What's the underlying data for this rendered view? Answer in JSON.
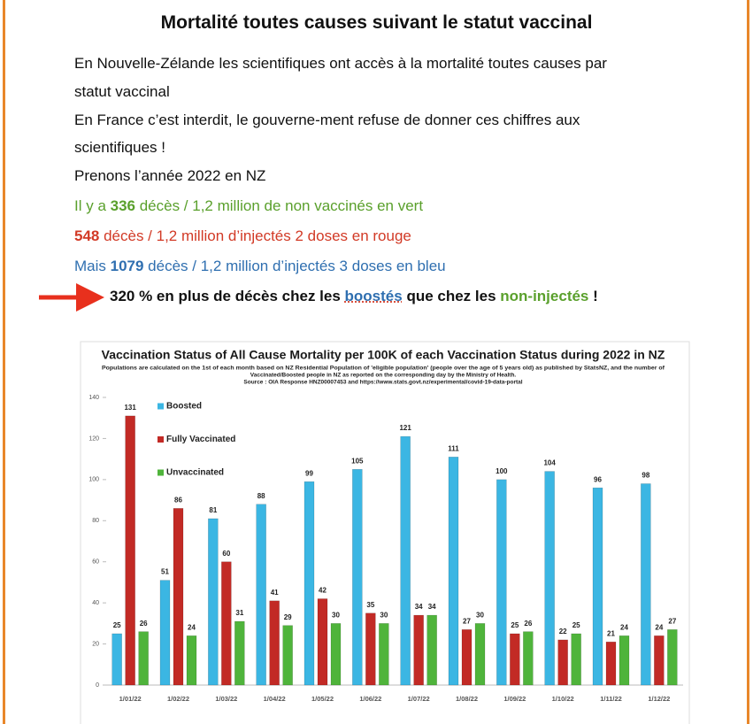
{
  "document": {
    "title": "Mortalité toutes causes suivant le statut vaccinal",
    "lines": [
      {
        "segments": [
          {
            "text": "En Nouvelle-Zélande les scientifiques ont accès à la mortalité toutes causes par"
          }
        ]
      },
      {
        "segments": [
          {
            "text": "statut vaccinal"
          }
        ]
      },
      {
        "segments": [
          {
            "text": "En France c’est interdit, le gouverne-ment refuse de donner ces chiffres aux"
          }
        ]
      },
      {
        "segments": [
          {
            "text": "scientifiques !"
          }
        ]
      },
      {
        "segments": [
          {
            "text": "Prenons l’année 2022 en NZ"
          }
        ]
      },
      {
        "color": "#5aa02c",
        "segments": [
          {
            "text": "Il y a "
          },
          {
            "text": "336",
            "bold": true
          },
          {
            "text": " décès / 1,2 million de non vaccinés en vert"
          }
        ]
      },
      {
        "color": "#d23a26",
        "segments": [
          {
            "text": "548",
            "bold": true
          },
          {
            "text": " décès / 1,2 million d’injectés 2 doses en rouge"
          }
        ]
      },
      {
        "color": "#2f6fb0",
        "segments": [
          {
            "text": "Mais "
          },
          {
            "text": "1079",
            "bold": true
          },
          {
            "text": " décès / 1,2 million d’injectés 3 doses en bleu"
          }
        ]
      },
      {
        "bold": true,
        "segments": [
          {
            "text": "320 % en plus de décès chez les "
          },
          {
            "text": "boostés",
            "color": "#2f6fb0",
            "underline": true
          },
          {
            "text": " que chez les "
          },
          {
            "text": "non-injectés",
            "color": "#5aa02c"
          },
          {
            "text": " !"
          }
        ]
      }
    ]
  },
  "chart_data": {
    "type": "bar",
    "title": "Vaccination Status of All Cause Mortality per 100K of each Vaccination Status during 2022 in NZ",
    "subtitle": [
      "Populations are calculated on the 1st of each month based on NZ Residential Population of 'eligible population' (people over the age of 5 years old) as published by StatsNZ, and the number of",
      "Vaccinated/Boosted people in NZ as reported on the corresponding day by the Ministry of Health.",
      "Source : OIA Response HNZ00007453 and https://www.stats.govt.nz/experimental/covid-19-data-portal"
    ],
    "categories": [
      "1/01/22",
      "1/02/22",
      "1/03/22",
      "1/04/22",
      "1/05/22",
      "1/06/22",
      "1/07/22",
      "1/08/22",
      "1/09/22",
      "1/10/22",
      "1/11/22",
      "1/12/22"
    ],
    "series": [
      {
        "name": "Boosted",
        "color": "#3bb6e3",
        "values": [
          25,
          51,
          81,
          88,
          99,
          105,
          121,
          111,
          100,
          104,
          96,
          98
        ]
      },
      {
        "name": "Fully Vaccinated",
        "color": "#c22a25",
        "values": [
          131,
          86,
          60,
          41,
          42,
          35,
          34,
          27,
          25,
          22,
          21,
          24
        ]
      },
      {
        "name": "Unvaccinated",
        "color": "#4fb43b",
        "values": [
          26,
          24,
          31,
          29,
          30,
          30,
          34,
          30,
          26,
          25,
          24,
          27
        ]
      }
    ],
    "ylim": [
      0,
      140
    ],
    "yticks": [
      0,
      20,
      40,
      60,
      80,
      100,
      120,
      140
    ],
    "grid": false,
    "legend": "top-left"
  }
}
